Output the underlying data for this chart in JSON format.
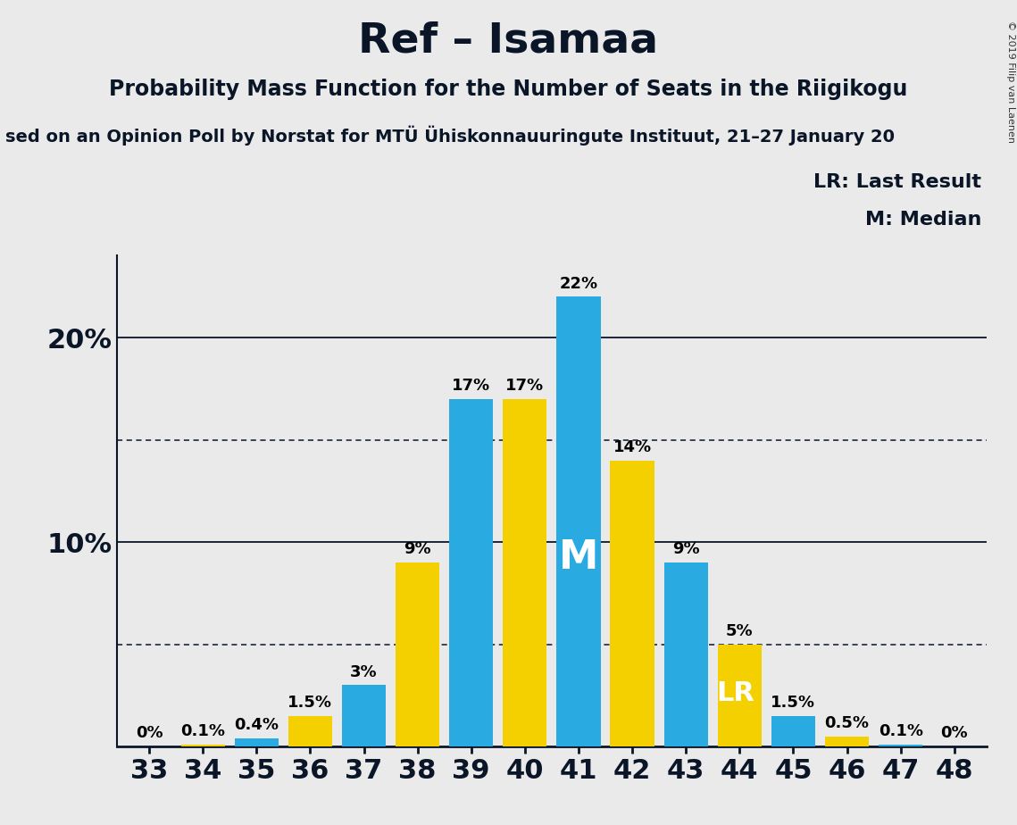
{
  "title": "Ref – Isamaa",
  "subtitle1": "Probability Mass Function for the Number of Seats in the Riigikogu",
  "subtitle2": "sed on an Opinion Poll by Norstat for MTÜ Ühiskonnauuringute Instituut, 21–27 January 20",
  "copyright": "© 2019 Filip van Laenen",
  "seats": [
    33,
    34,
    35,
    36,
    37,
    38,
    39,
    40,
    41,
    42,
    43,
    44,
    45,
    46,
    47,
    48
  ],
  "values": [
    0.0,
    0.1,
    0.4,
    1.5,
    3.0,
    9.0,
    17.0,
    17.0,
    22.0,
    14.0,
    9.0,
    5.0,
    1.5,
    0.5,
    0.1,
    0.0
  ],
  "colors": [
    "#29ABE2",
    "#F5D000",
    "#29ABE2",
    "#F5D000",
    "#29ABE2",
    "#F5D000",
    "#29ABE2",
    "#F5D000",
    "#29ABE2",
    "#F5D000",
    "#29ABE2",
    "#F5D000",
    "#29ABE2",
    "#F5D000",
    "#29ABE2",
    "#F5D000"
  ],
  "labels": [
    "0%",
    "0.1%",
    "0.4%",
    "1.5%",
    "3%",
    "9%",
    "17%",
    "17%",
    "22%",
    "14%",
    "9%",
    "5%",
    "1.5%",
    "0.5%",
    "0.1%",
    "0%"
  ],
  "median_seat": 41,
  "lr_seat": 44,
  "ylim_max": 24.0,
  "solid_lines": [
    10.0,
    20.0
  ],
  "dotted_lines": [
    5.0,
    15.0
  ],
  "bg_color": "#EAEAEA",
  "bar_color_blue": "#29ABE2",
  "bar_color_yellow": "#F5D000",
  "title_fontsize": 34,
  "subtitle1_fontsize": 17,
  "subtitle2_fontsize": 14,
  "label_fontsize": 13,
  "ytick_fontsize": 22,
  "xtick_fontsize": 22,
  "legend_fontsize": 16,
  "M_fontsize": 32,
  "LR_fontsize": 22
}
